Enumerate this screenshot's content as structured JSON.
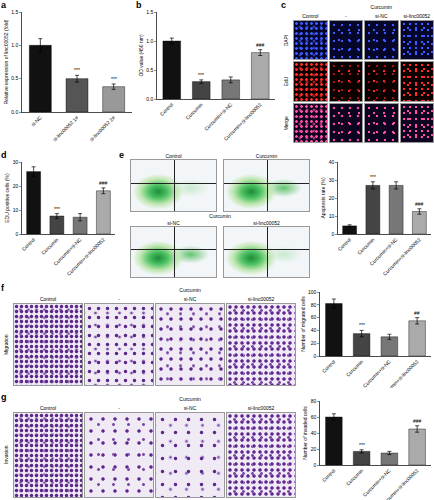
{
  "chart_data": [
    {
      "type": "bar",
      "panel_label": "a",
      "y_label": "Relative expression of linc00052 (fold)",
      "categories": [
        "si-NC",
        "si-linc00052 1#",
        "si-linc00052 2#"
      ],
      "values": [
        1.0,
        0.5,
        0.38
      ],
      "errors": [
        0.1,
        0.05,
        0.04
      ],
      "colors": [
        "#111111",
        "#555555",
        "#999999"
      ],
      "significance": [
        null,
        "***",
        "***"
      ],
      "ylim": [
        0,
        1.5
      ],
      "yticks": [
        {
          "value": 0,
          "label": "0.0"
        },
        {
          "value": 0.5,
          "label": "0.5"
        },
        {
          "value": 1,
          "label": "1.0"
        },
        {
          "value": 1.5,
          "label": "1.5"
        }
      ]
    },
    {
      "type": "bar",
      "panel_label": "b",
      "y_label": "OD value (450 nm)",
      "categories": [
        "Control",
        "Curcumin",
        "Curcumin+si-NC",
        "Curcumin+si-linc00052"
      ],
      "values": [
        1.0,
        0.3,
        0.33,
        0.8
      ],
      "errors": [
        0.05,
        0.03,
        0.05,
        0.05
      ],
      "colors": [
        "#111111",
        "#444444",
        "#777777",
        "#aaaaaa"
      ],
      "significance": [
        null,
        "***",
        null,
        "###"
      ],
      "ylim": [
        0,
        1.5
      ],
      "yticks": [
        {
          "value": 0,
          "label": "0.0"
        },
        {
          "value": 0.5,
          "label": "0.5"
        },
        {
          "value": 1,
          "label": "1.0"
        },
        {
          "value": 1.5,
          "label": "1.5"
        }
      ]
    },
    {
      "type": "bar",
      "panel_label": "d",
      "y_label": "EDU positive cells (%)",
      "categories": [
        "Control",
        "Curcumin",
        "Curcumin+si-NC",
        "Curcumin+si-linc00052"
      ],
      "values": [
        26,
        7.5,
        7,
        18
      ],
      "errors": [
        2,
        1,
        1.5,
        1.2
      ],
      "colors": [
        "#111111",
        "#444444",
        "#777777",
        "#aaaaaa"
      ],
      "significance": [
        null,
        "***",
        null,
        "###"
      ],
      "ylim": [
        0,
        30
      ],
      "yticks": [
        0,
        10,
        20,
        30
      ]
    },
    {
      "type": "bar",
      "y_label": "Apoptosis rate (%)",
      "categories": [
        "Control",
        "Curcumin",
        "Curcumin+si-NC",
        "Curcumin+si-linc00052"
      ],
      "values": [
        4.5,
        27,
        27,
        12.5
      ],
      "errors": [
        0.6,
        2,
        2,
        1.5
      ],
      "colors": [
        "#111111",
        "#444444",
        "#777777",
        "#aaaaaa"
      ],
      "significance": [
        null,
        "***",
        null,
        "###"
      ],
      "ylim": [
        0,
        40
      ],
      "yticks": [
        0,
        10,
        20,
        30,
        40
      ]
    },
    {
      "type": "bar",
      "y_label": "Number of migrated cells",
      "categories": [
        "Control",
        "Curcumin",
        "Curcumin+si-NC",
        "Curcumin+si-linc00052"
      ],
      "values": [
        82,
        35,
        30,
        55
      ],
      "errors": [
        7,
        5,
        4,
        5
      ],
      "colors": [
        "#111111",
        "#444444",
        "#777777",
        "#aaaaaa"
      ],
      "significance": [
        null,
        "***",
        null,
        "##"
      ],
      "ylim": [
        0,
        100
      ],
      "yticks": [
        0,
        20,
        40,
        60,
        80,
        100
      ]
    },
    {
      "type": "bar",
      "y_label": "Number of invaded cells",
      "categories": [
        "Control",
        "Curcumin",
        "Curcumin+si-NC",
        "Curcumin+si-linc00052"
      ],
      "values": [
        60,
        17,
        15,
        45
      ],
      "errors": [
        4,
        2,
        2,
        4
      ],
      "colors": [
        "#111111",
        "#444444",
        "#777777",
        "#aaaaaa"
      ],
      "significance": [
        null,
        "***",
        null,
        "###"
      ],
      "ylim": [
        0,
        80
      ],
      "yticks": [
        0,
        20,
        40,
        60,
        80
      ]
    }
  ],
  "image_panels": {
    "c": {
      "letter": "c",
      "first": "Control",
      "group": "Curcumin",
      "subgroups": [
        "-",
        "si-NC",
        "si-linc00052"
      ],
      "rows": [
        "DAPI",
        "EdU",
        "Merge"
      ]
    },
    "e": {
      "letter": "e",
      "top": [
        "Control",
        "Curcumin"
      ],
      "group": "Curcumin",
      "subgroups": [
        "si-NC",
        "si-linc00052"
      ]
    },
    "f": {
      "letter": "f",
      "side_label": "Migration",
      "first": "Control",
      "group": "Curcumin",
      "subgroups": [
        "-",
        "si-NC",
        "si-linc00052"
      ]
    },
    "g": {
      "letter": "g",
      "side_label": "Invasion",
      "first": "Control",
      "group": "Curcumin",
      "subgroups": [
        "-",
        "si-NC",
        "si-linc00052"
      ]
    }
  }
}
